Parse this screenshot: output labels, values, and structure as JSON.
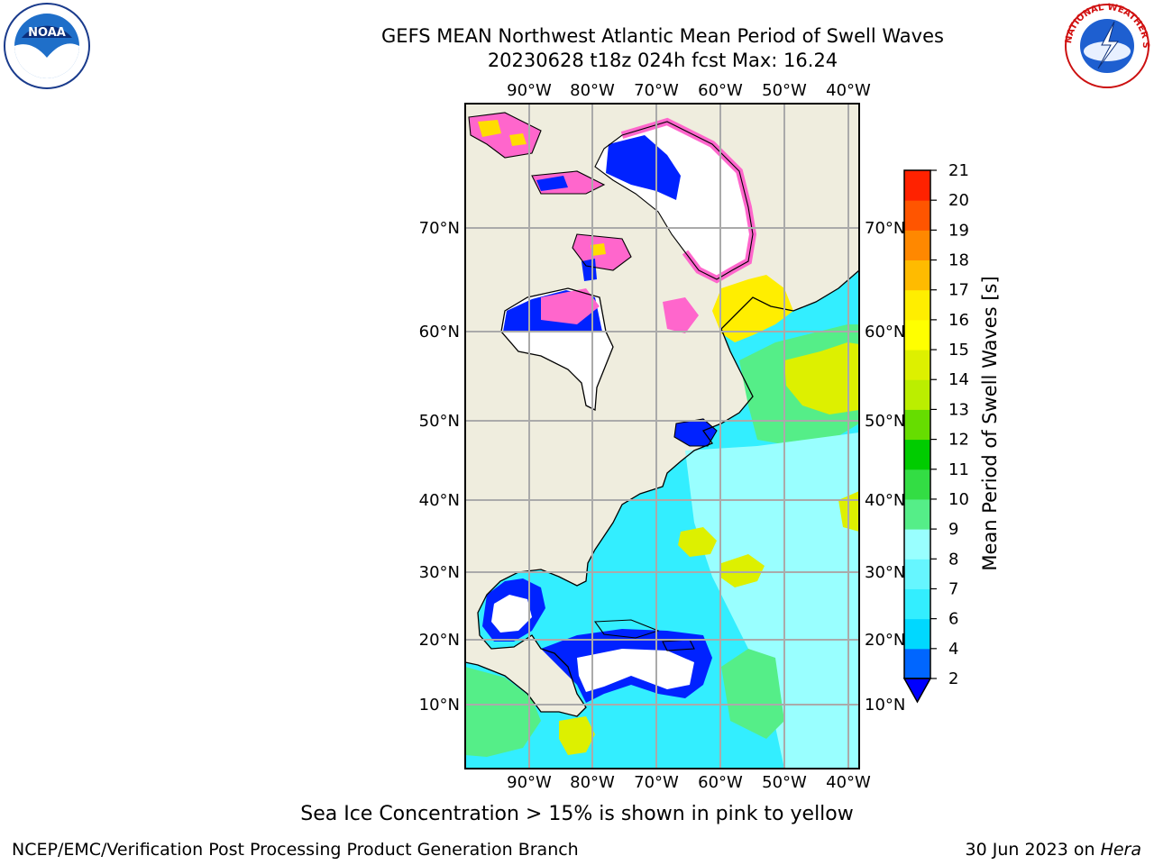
{
  "header": {
    "title_line1": "GEFS MEAN Northwest Atlantic Mean Period of Swell Waves",
    "title_line2": "20230628 t18z 024h fcst   Max: 16.24"
  },
  "map": {
    "lon_labels": [
      "90°W",
      "80°W",
      "70°W",
      "60°W",
      "50°W",
      "40°W"
    ],
    "lat_labels": [
      "70°N",
      "60°N",
      "50°N",
      "40°N",
      "30°N",
      "20°N",
      "10°N"
    ],
    "colors": {
      "land": "#efedde",
      "ice_pink": "#ff66cc",
      "ice_yellow": "#ffdd00"
    }
  },
  "colorbar": {
    "label": "Mean Period of Swell Waves [s]",
    "ticks": [
      "2",
      "4",
      "6",
      "7",
      "8",
      "9",
      "10",
      "11",
      "12",
      "13",
      "14",
      "15",
      "16",
      "17",
      "18",
      "19",
      "20",
      "21"
    ],
    "colors": [
      "#0066ff",
      "#00d8ff",
      "#33eeff",
      "#66f6ff",
      "#99ffff",
      "#55ee88",
      "#33dd44",
      "#00cc00",
      "#66dd00",
      "#bbee00",
      "#ddf000",
      "#ffff00",
      "#ffee00",
      "#ffbb00",
      "#ff8800",
      "#ff5500",
      "#ff2200"
    ],
    "extend_color": "#0000ff"
  },
  "footer": {
    "note": "Sea Ice Concentration > 15% is shown in pink to yellow",
    "credit": "NCEP/EMC/Verification Post Processing Product Generation Branch",
    "date": "30 Jun 2023 on",
    "machine": "Hera"
  },
  "logos": {
    "noaa_text": "NOAA",
    "nws_text": "NATIONAL WEATHER SERVICE"
  }
}
